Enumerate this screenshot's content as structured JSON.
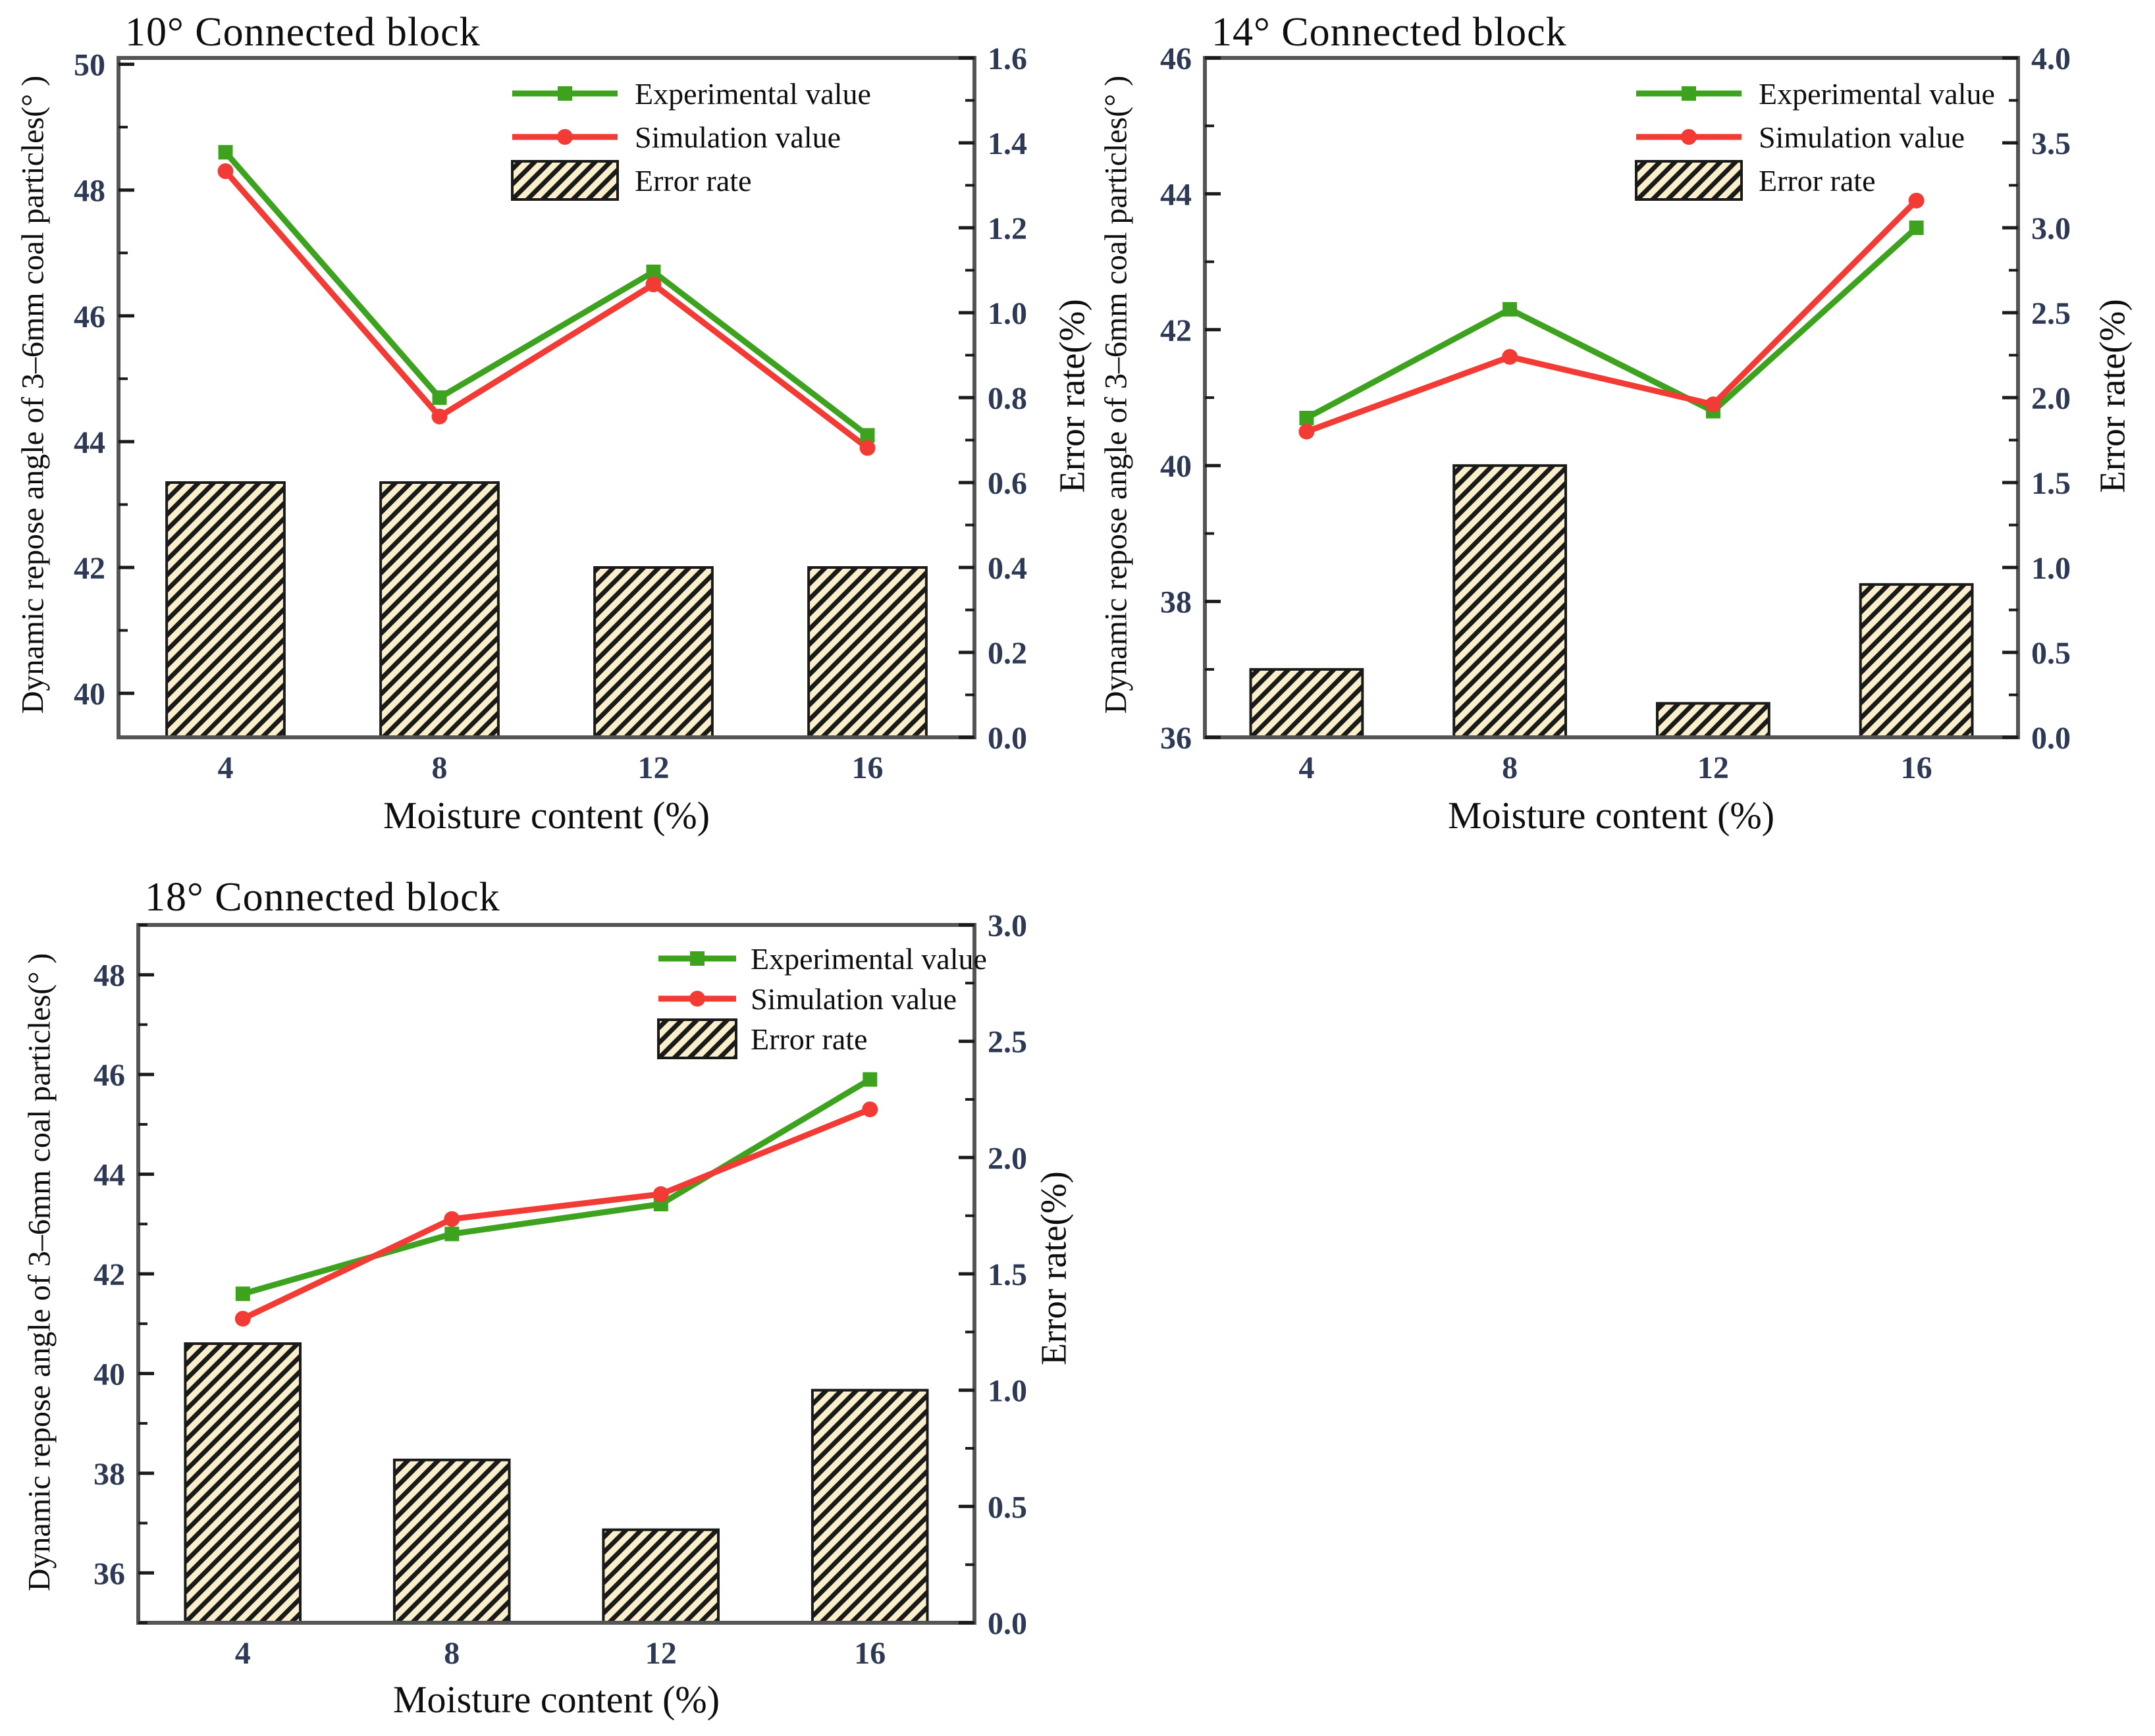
{
  "figure": {
    "background": "#ffffff",
    "legend_labels": [
      "Experimental value",
      "Simulation value",
      "Error rate"
    ]
  },
  "colors": {
    "experimental": "#3da21e",
    "simulation": "#f23b35",
    "bar_fill": "#f9efca",
    "bar_hatch": "#1a1a1a",
    "spine": "#555555",
    "tick": "#1a1a1a",
    "tick_label": "#2e3a55",
    "text": "#0e0e0e"
  },
  "chart_data": [
    {
      "type": "line+bar",
      "title": "10° Connected block",
      "xlabel": "Moisture content (%)",
      "ylabel_left": "Dynamic repose angle of 3–6mm coal particles(° )",
      "ylabel_right": "Error rate(%)",
      "categories": [
        4,
        8,
        12,
        16
      ],
      "left_axis": {
        "min": 39.3,
        "max": 50.1,
        "major_ticks": [
          40,
          42,
          44,
          46,
          48,
          50
        ]
      },
      "right_axis": {
        "min": 0.0,
        "max": 1.6,
        "step": 0.2,
        "decimals": 1
      },
      "series": [
        {
          "name": "Experimental value",
          "marker": "square",
          "values": [
            48.6,
            44.7,
            46.7,
            44.1
          ]
        },
        {
          "name": "Simulation value",
          "marker": "circle",
          "values": [
            48.3,
            44.4,
            46.5,
            43.9
          ]
        }
      ],
      "error_rate_bars": [
        0.6,
        0.6,
        0.4,
        0.4
      ],
      "legend": [
        "Experimental value",
        "Simulation value",
        "Error rate"
      ]
    },
    {
      "type": "line+bar",
      "title": "14° Connected block",
      "xlabel": "Moisture content (%)",
      "ylabel_left": "Dynamic repose angle of 3–6mm coal particles(° )",
      "ylabel_right": "Error rate(%)",
      "categories": [
        4,
        8,
        12,
        16
      ],
      "left_axis": {
        "min": 36,
        "max": 46,
        "major_ticks": [
          36,
          38,
          40,
          42,
          44,
          46
        ]
      },
      "right_axis": {
        "min": 0.0,
        "max": 4.0,
        "step": 0.5,
        "decimals": 1
      },
      "series": [
        {
          "name": "Experimental value",
          "marker": "square",
          "values": [
            40.7,
            42.3,
            40.8,
            43.5
          ]
        },
        {
          "name": "Simulation value",
          "marker": "circle",
          "values": [
            40.5,
            41.6,
            40.9,
            43.9
          ]
        }
      ],
      "error_rate_bars": [
        0.4,
        1.6,
        0.2,
        0.9
      ],
      "legend": [
        "Experimental value",
        "Simulation value",
        "Error rate"
      ]
    },
    {
      "type": "line+bar",
      "title": "18° Connected block",
      "xlabel": "Moisture content (%)",
      "ylabel_left": "Dynamic repose angle of 3–6mm coal particles(° )",
      "ylabel_right": "Error rate(%)",
      "categories": [
        4,
        8,
        12,
        16
      ],
      "left_axis": {
        "min": 35,
        "max": 49,
        "major_ticks": [
          36,
          38,
          40,
          42,
          44,
          46,
          48
        ]
      },
      "right_axis": {
        "min": 0.0,
        "max": 3.0,
        "step": 0.5,
        "decimals": 1
      },
      "series": [
        {
          "name": "Experimental value",
          "marker": "square",
          "values": [
            41.6,
            42.8,
            43.4,
            45.9
          ]
        },
        {
          "name": "Simulation value",
          "marker": "circle",
          "values": [
            41.1,
            43.1,
            43.6,
            45.3
          ]
        }
      ],
      "error_rate_bars": [
        1.2,
        0.7,
        0.4,
        1.0
      ],
      "legend": [
        "Experimental value",
        "Simulation value",
        "Error rate"
      ]
    }
  ]
}
